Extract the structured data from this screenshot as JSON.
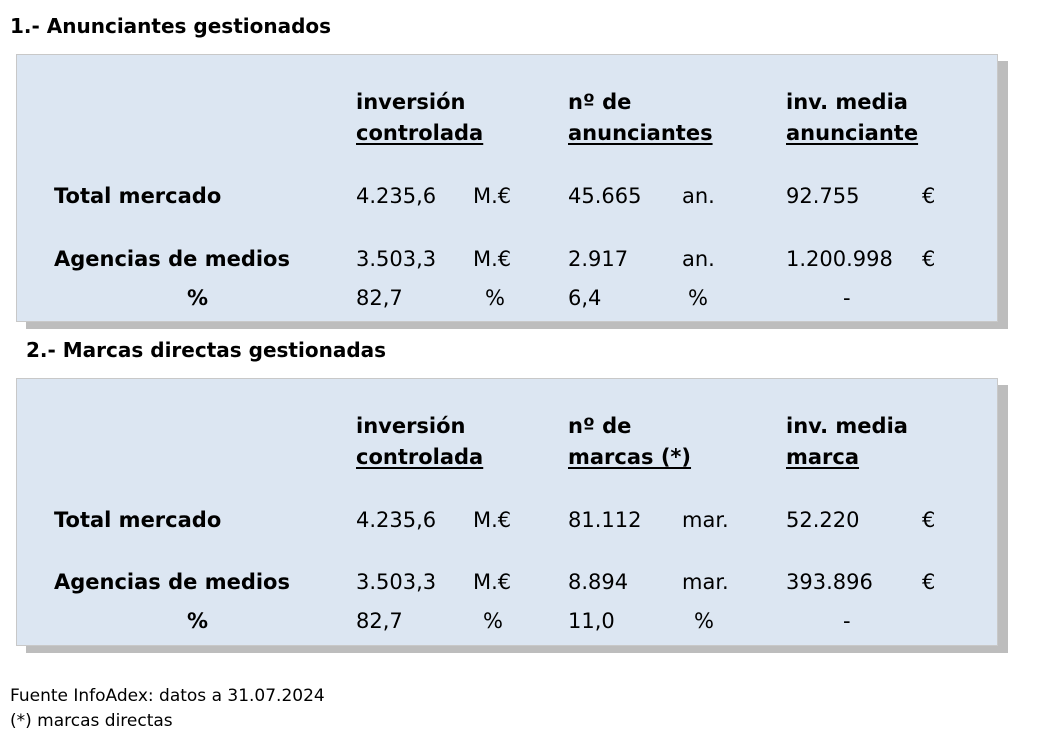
{
  "section1": {
    "title": "1.- Anunciantes gestionados",
    "headers": {
      "col1_line1": "inversión",
      "col1_line2": "controlada",
      "col2_line1": "nº de",
      "col2_line2": "anunciantes",
      "col3_line1": "inv. media",
      "col3_line2": "anunciante"
    },
    "rows": [
      {
        "label": "Total mercado",
        "v1": "4.235,6",
        "u1": "M.€",
        "v2": "45.665",
        "u2": "an.",
        "v3": "92.755",
        "u3": "€"
      },
      {
        "label": "Agencias de medios",
        "v1": "3.503,3",
        "u1": "M.€",
        "v2": "2.917",
        "u2": "an.",
        "v3": "1.200.998",
        "u3": "€"
      },
      {
        "label": "%",
        "v1": "82,7",
        "u1": "%",
        "v2": "6,4",
        "u2": "%",
        "v3": "-",
        "u3": ""
      }
    ]
  },
  "section2": {
    "title": "2.- Marcas directas gestionadas",
    "headers": {
      "col1_line1": "inversión",
      "col1_line2": "controlada",
      "col2_line1": "nº de",
      "col2_line2": "marcas (*)",
      "col3_line1": "inv. media",
      "col3_line2": "marca"
    },
    "rows": [
      {
        "label": "Total mercado",
        "v1": "4.235,6",
        "u1": "M.€",
        "v2": "81.112",
        "u2": "mar.",
        "v3": "52.220",
        "u3": "€"
      },
      {
        "label": "Agencias de medios",
        "v1": "3.503,3",
        "u1": "M.€",
        "v2": "8.894",
        "u2": "mar.",
        "v3": "393.896",
        "u3": "€"
      },
      {
        "label": "%",
        "v1": "82,7",
        "u1": "%",
        "v2": "11,0",
        "u2": "%",
        "v3": "-",
        "u3": ""
      }
    ]
  },
  "footer": {
    "source": "Fuente InfoAdex: datos a 31.07.2024",
    "note": "(*) marcas directas"
  }
}
